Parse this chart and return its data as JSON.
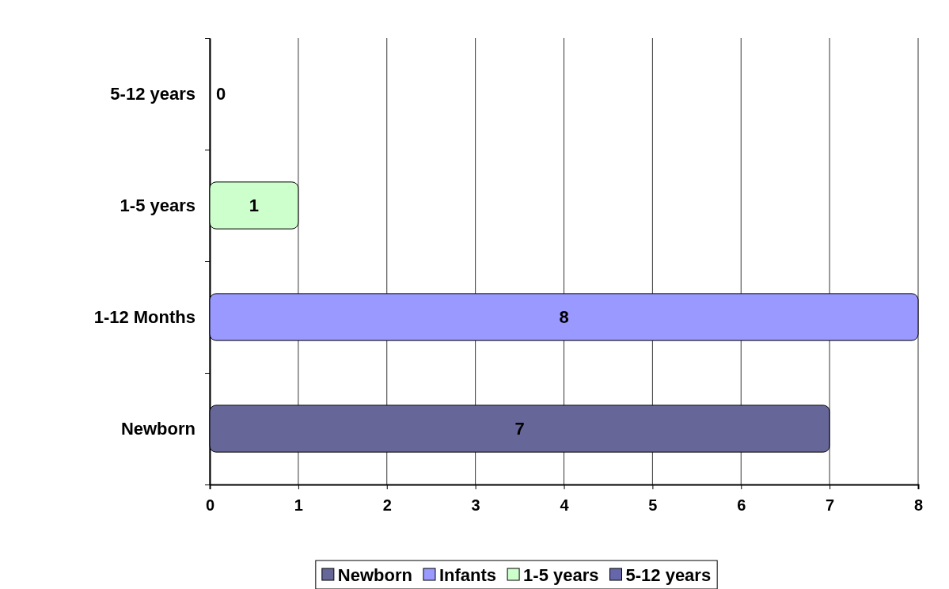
{
  "chart_data": {
    "type": "bar",
    "orientation": "horizontal",
    "categories": [
      "5-12 years",
      "1-5 years",
      "1-12 Months",
      "Newborn"
    ],
    "series": [
      {
        "name": "Newborn",
        "color": "#666699",
        "values": [
          null,
          null,
          null,
          7
        ]
      },
      {
        "name": "Infants",
        "color": "#9999ff",
        "values": [
          null,
          null,
          8,
          null
        ]
      },
      {
        "name": "1-5 years",
        "color": "#ccffcc",
        "values": [
          null,
          1,
          null,
          null
        ]
      },
      {
        "name": "5-12 years",
        "color": "#6666aa",
        "values": [
          0,
          null,
          null,
          null
        ]
      }
    ],
    "xlim": [
      0,
      8
    ],
    "xticks": [
      0,
      1,
      2,
      3,
      4,
      5,
      6,
      7,
      8
    ],
    "grid": "x",
    "legend": "bottom",
    "data_labels": true
  }
}
